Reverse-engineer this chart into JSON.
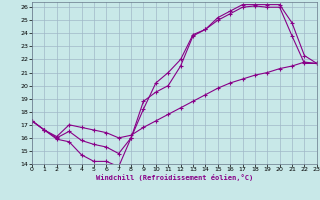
{
  "xlabel": "Windchill (Refroidissement éolien,°C)",
  "background_color": "#c8e8e8",
  "grid_color": "#a0b8c8",
  "line_color": "#880088",
  "xlim": [
    0,
    23
  ],
  "ylim": [
    14,
    26.4
  ],
  "xticks": [
    0,
    1,
    2,
    3,
    4,
    5,
    6,
    7,
    8,
    9,
    10,
    11,
    12,
    13,
    14,
    15,
    16,
    17,
    18,
    19,
    20,
    21,
    22,
    23
  ],
  "yticks": [
    14,
    15,
    16,
    17,
    18,
    19,
    20,
    21,
    22,
    23,
    24,
    25,
    26
  ],
  "line1_x": [
    0,
    1,
    2,
    3,
    4,
    5,
    6,
    7,
    8,
    9,
    10,
    11,
    12,
    13,
    14,
    15,
    16,
    17,
    18,
    19,
    20,
    21,
    22,
    23
  ],
  "line1_y": [
    17.3,
    16.6,
    15.9,
    15.7,
    14.7,
    14.2,
    14.2,
    13.8,
    16.0,
    18.8,
    19.5,
    20.0,
    21.5,
    23.8,
    24.3,
    25.0,
    25.5,
    26.0,
    26.1,
    26.0,
    26.0,
    23.8,
    21.7,
    21.7
  ],
  "line2_x": [
    0,
    1,
    2,
    3,
    4,
    5,
    6,
    7,
    8,
    9,
    10,
    11,
    12,
    13,
    14,
    15,
    16,
    17,
    18,
    19,
    20,
    21,
    22,
    23
  ],
  "line2_y": [
    17.3,
    16.6,
    16.0,
    16.5,
    15.8,
    15.5,
    15.3,
    14.8,
    16.0,
    18.2,
    20.2,
    21.0,
    22.0,
    23.9,
    24.3,
    25.2,
    25.7,
    26.2,
    26.2,
    26.2,
    26.2,
    24.8,
    22.3,
    21.7
  ],
  "line3_x": [
    0,
    1,
    2,
    3,
    4,
    5,
    6,
    7,
    8,
    9,
    10,
    11,
    12,
    13,
    14,
    15,
    16,
    17,
    18,
    19,
    20,
    21,
    22,
    23
  ],
  "line3_y": [
    17.3,
    16.6,
    16.1,
    17.0,
    16.8,
    16.6,
    16.4,
    16.0,
    16.2,
    16.8,
    17.3,
    17.8,
    18.3,
    18.8,
    19.3,
    19.8,
    20.2,
    20.5,
    20.8,
    21.0,
    21.3,
    21.5,
    21.8,
    21.7
  ]
}
